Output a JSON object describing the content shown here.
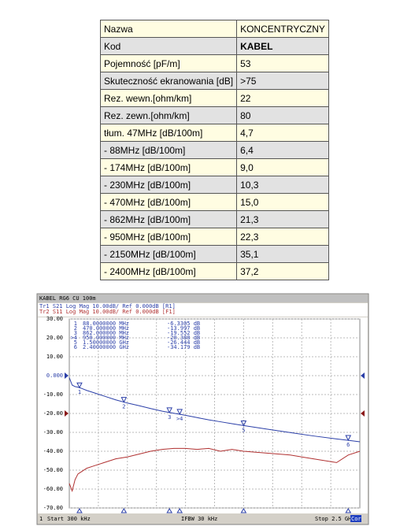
{
  "table": {
    "rows": [
      [
        "Nazwa",
        "KONCENTRYCZNY"
      ],
      [
        "Kod",
        "KABEL"
      ],
      [
        "Pojemność [pF/m]",
        "53"
      ],
      [
        "Skuteczność ekranowania [dB]",
        ">75"
      ],
      [
        "Rez. wewn.[ohm/km]",
        "22"
      ],
      [
        "Rez. zewn.[ohm/km]",
        "80"
      ],
      [
        "tłum. 47MHz [dB/100m]",
        "4,7"
      ],
      [
        "- 88MHz [dB/100m]",
        "6,4"
      ],
      [
        "- 174MHz [dB/100m]",
        "9,0"
      ],
      [
        "- 230MHz [dB/100m]",
        "10,3"
      ],
      [
        "- 470MHz [dB/100m]",
        "15,0"
      ],
      [
        "- 862MHz [dB/100m]",
        "21,3"
      ],
      [
        "- 950MHz [dB/100m]",
        "22,3"
      ],
      [
        "- 2150MHz [dB/100m]",
        "35,1"
      ],
      [
        "- 2400MHz [dB/100m]",
        "37,2"
      ]
    ]
  },
  "chart_data": {
    "type": "line",
    "title": "KABEL RG6 CU 100m",
    "x": [
      0.3,
      25,
      50,
      75,
      100,
      150,
      200,
      300,
      400,
      500,
      600,
      700,
      800,
      900,
      1000,
      1100,
      1200,
      1300,
      1400,
      1500,
      1700,
      1900,
      2100,
      2300,
      2400,
      2500
    ],
    "xlim": [
      0.3,
      2500
    ],
    "ylim": [
      -70,
      30
    ],
    "yticks": [
      {
        "value": 30,
        "label": "30.00"
      },
      {
        "value": 20,
        "label": "20.00"
      },
      {
        "value": 10,
        "label": "10.00"
      },
      {
        "value": 0,
        "label": "0.000"
      },
      {
        "value": -10,
        "label": "-10.00"
      },
      {
        "value": -20,
        "label": "-20.00"
      },
      {
        "value": -30,
        "label": "-30.00"
      },
      {
        "value": -40,
        "label": "-40.00"
      },
      {
        "value": -50,
        "label": "-50.00"
      },
      {
        "value": -60,
        "label": "-60.00"
      },
      {
        "value": -70,
        "label": "-70.00"
      }
    ],
    "grid": true,
    "series": [
      {
        "name": "Tr1 S21 Log Mag 10.00dB/ Ref 0.000dB [R1]",
        "color": "#2b3fa8",
        "values": [
          -1,
          -5,
          -5.8,
          -6.1,
          -6.6,
          -7.8,
          -8.8,
          -10.8,
          -12.8,
          -14.5,
          -15.9,
          -17.4,
          -18.8,
          -19.9,
          -21.0,
          -22.2,
          -23.4,
          -24.4,
          -25.4,
          -26.4,
          -28.3,
          -30.1,
          -31.9,
          -33.5,
          -34.2,
          -35
        ]
      },
      {
        "name": "Tr2 S11 Log Mag 10.00dB/ Ref 0.000dB [F1]",
        "color": "#b03030",
        "values": [
          -57,
          -61,
          -55,
          -52,
          -51,
          -49,
          -48,
          -46,
          -44,
          -43,
          -41.5,
          -40,
          -39,
          -38.5,
          -38.5,
          -39,
          -38.5,
          -40,
          -39,
          -40,
          -41,
          -42,
          -44,
          -46,
          -42,
          -40
        ]
      }
    ],
    "markers": [
      {
        "id": "1",
        "x": {
          "value": 88,
          "label": "88.0000000 MHz"
        },
        "y": {
          "value": -6.3305,
          "label": "-6.3305 dB"
        }
      },
      {
        "id": "2",
        "x": {
          "value": 470,
          "label": "470.000000 MHz"
        },
        "y": {
          "value": -13.997,
          "label": "-13.997 dB"
        }
      },
      {
        "id": "3",
        "x": {
          "value": 862,
          "label": "862.000000 MHz"
        },
        "y": {
          "value": -19.552,
          "label": "-19.552 dB"
        }
      },
      {
        "id": ">4",
        "x": {
          "value": 950,
          "label": "950.000000 MHz"
        },
        "y": {
          "value": -20.388,
          "label": "-20.388 dB"
        }
      },
      {
        "id": "5",
        "x": {
          "value": 1500,
          "label": "1.50000000 GHz"
        },
        "y": {
          "value": -26.444,
          "label": "-26.444 dB"
        }
      },
      {
        "id": "6",
        "x": {
          "value": 2400,
          "label": "2.40000000 GHz"
        },
        "y": {
          "value": -34.179,
          "label": "-34.179 dB"
        }
      }
    ],
    "footer": {
      "channel": "1",
      "start": "Start 300 kHz",
      "ifbw": "IFBW 30 kHz",
      "stop": "Stop 2.5 GHz",
      "cor": "Cor"
    }
  }
}
